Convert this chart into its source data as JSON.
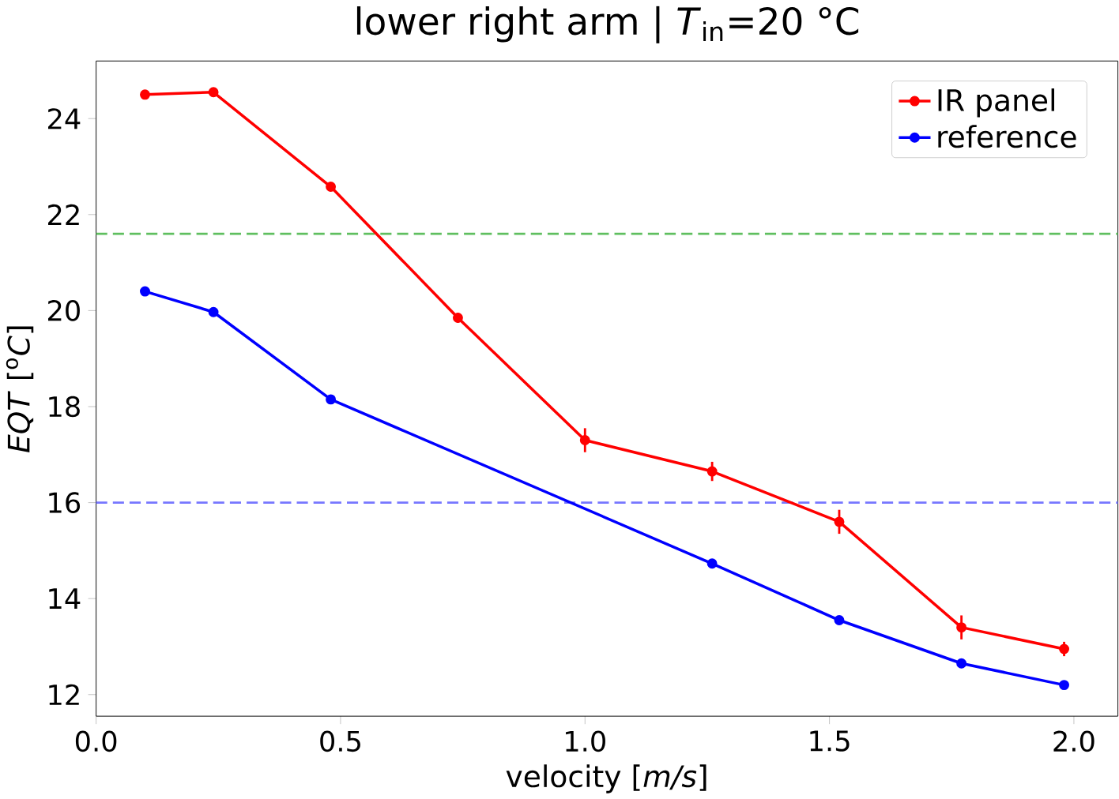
{
  "chart_data": {
    "type": "line",
    "title": "lower right arm | *T*$_{in}$=20 °C",
    "xlabel": "velocity [*m/s*]",
    "ylabel": "*EQT* [$^{o}$*C*]",
    "xlim": [
      0,
      2.09
    ],
    "ylim": [
      11.55,
      25.2
    ],
    "xticks": [
      {
        "value": 0,
        "label": "0.0"
      },
      0.5,
      {
        "value": 1,
        "label": "1.0"
      },
      1.5,
      {
        "value": 2,
        "label": "2.0"
      }
    ],
    "yticks": [
      12,
      14,
      16,
      18,
      20,
      22,
      24
    ],
    "series": [
      {
        "name": "IR panel",
        "color": "#ff0000",
        "x": [
          0.1,
          0.24,
          0.48,
          0.74,
          1.0,
          1.26,
          1.52,
          1.77,
          1.98
        ],
        "values": [
          24.5,
          24.55,
          22.58,
          19.85,
          17.3,
          16.65,
          15.6,
          13.4,
          12.95
        ],
        "errors": [
          0.05,
          0.05,
          0.08,
          0.1,
          0.25,
          0.2,
          0.25,
          0.25,
          0.15
        ]
      },
      {
        "name": "reference",
        "color": "#0000ff",
        "x": [
          0.1,
          0.24,
          0.48,
          1.26,
          1.52,
          1.77,
          1.98
        ],
        "values": [
          20.4,
          19.97,
          18.15,
          14.73,
          13.55,
          12.65,
          12.2
        ],
        "errors": [
          0.05,
          0.05,
          0.05,
          0.05,
          0.08,
          0.05,
          0.05
        ]
      }
    ],
    "ref_lines": [
      {
        "axis": "y",
        "value": 21.6,
        "color": "#5fbf5f",
        "line_style": "dashed"
      },
      {
        "axis": "y",
        "value": 16.0,
        "color": "#7777ff",
        "line_style": "dashed"
      }
    ],
    "legend": "top right",
    "marker": "circle",
    "line_style": "solid"
  }
}
